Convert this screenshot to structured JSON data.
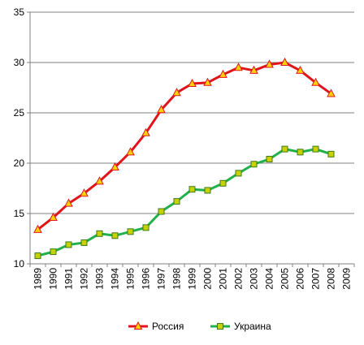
{
  "chart_data": {
    "type": "line",
    "title": "",
    "xlabel": "",
    "ylabel": "",
    "categories": [
      "1989",
      "1990",
      "1991",
      "1992",
      "1993",
      "1994",
      "1995",
      "1996",
      "1997",
      "1998",
      "1999",
      "2000",
      "2001",
      "2002",
      "2003",
      "2004",
      "2005",
      "2006",
      "2007",
      "2008",
      "2009"
    ],
    "ylim": [
      10,
      35
    ],
    "yticks": [
      "10",
      "15",
      "20",
      "25",
      "30",
      "35"
    ],
    "grid": "horizontal",
    "legend_position": "bottom",
    "series": [
      {
        "name": "Россия",
        "color": "#e0151b",
        "marker": "triangle",
        "marker_fill": "#ffd200",
        "values": [
          13.4,
          14.6,
          16.0,
          17.0,
          18.2,
          19.6,
          21.1,
          23.0,
          25.3,
          27.0,
          27.9,
          28.0,
          28.8,
          29.5,
          29.2,
          29.8,
          30.0,
          29.2,
          28.0,
          26.9,
          null
        ]
      },
      {
        "name": "Украина",
        "color": "#22b04a",
        "marker": "square",
        "marker_fill": "#c8d200",
        "values": [
          10.8,
          11.2,
          11.9,
          12.1,
          13.0,
          12.8,
          13.2,
          13.6,
          15.2,
          16.2,
          17.4,
          17.3,
          18.0,
          19.0,
          19.9,
          20.4,
          21.4,
          21.1,
          21.4,
          20.9,
          null
        ]
      }
    ]
  }
}
